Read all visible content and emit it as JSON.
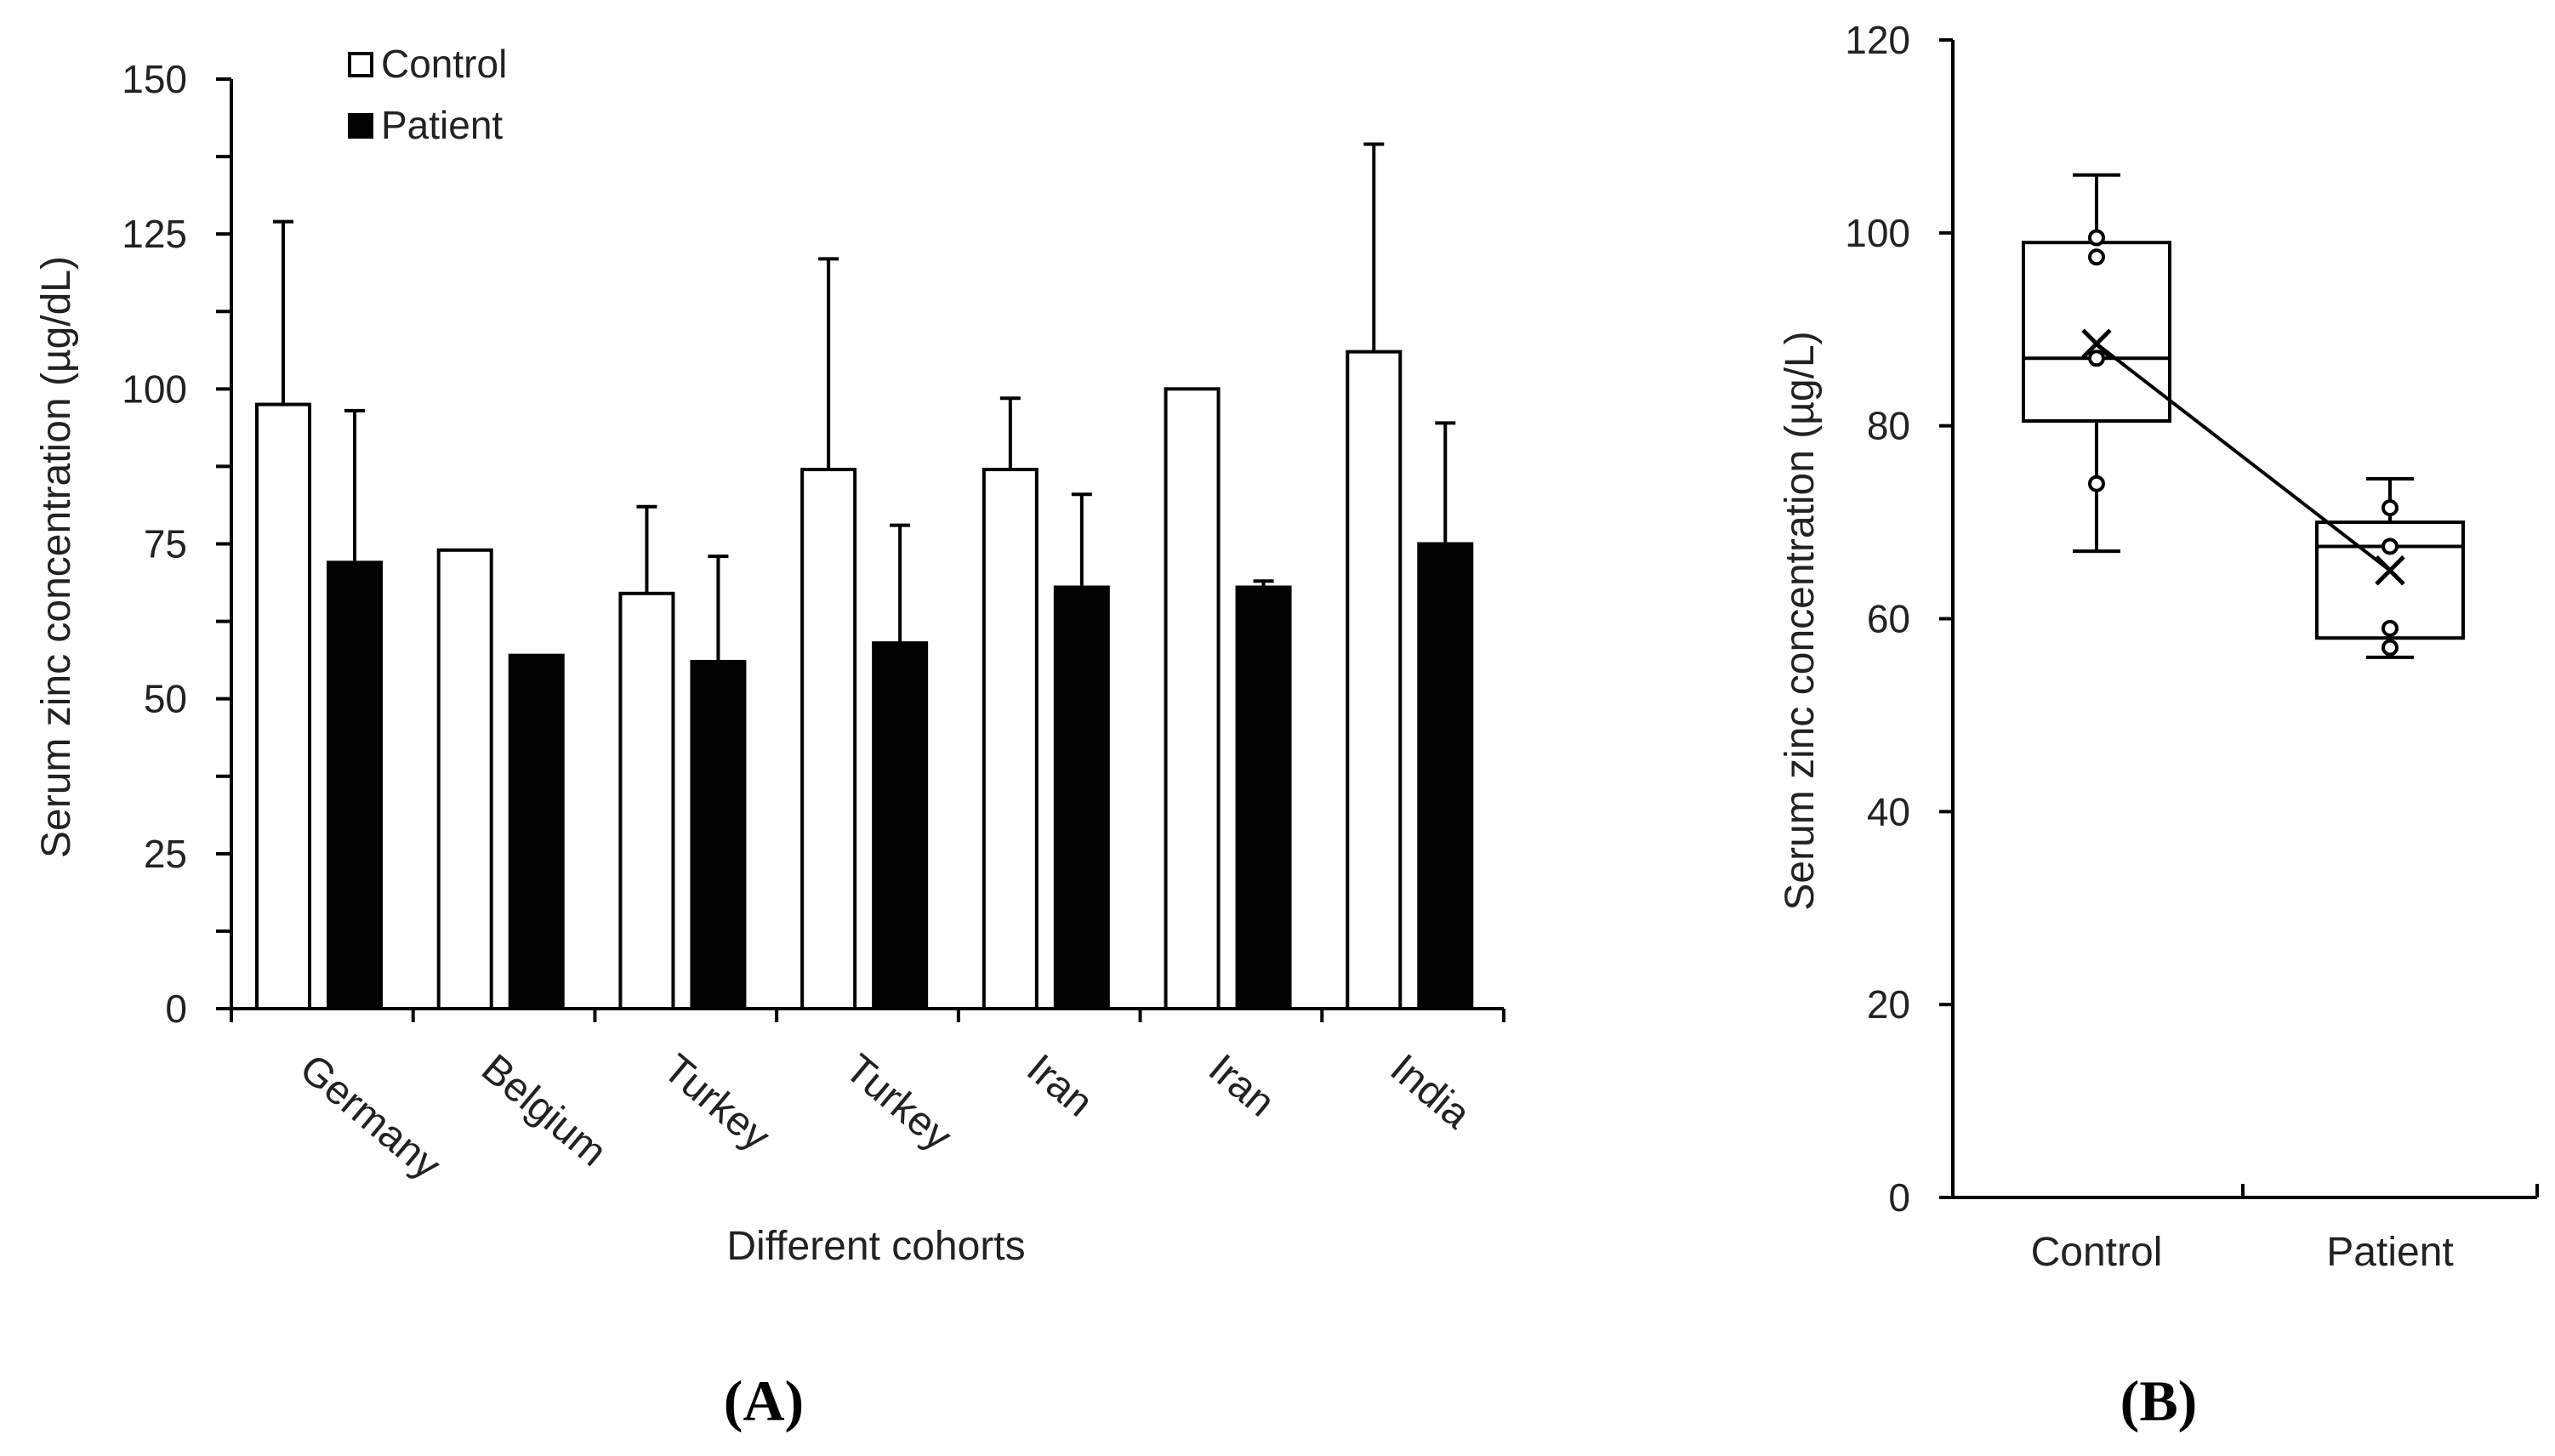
{
  "chart_data": [
    {
      "type": "bar",
      "panel_label": "(A)",
      "ylabel": "Serum zinc concentration  (µg/dL)",
      "xlabel": "Different cohorts",
      "ylim": [
        0,
        150
      ],
      "yticks": [
        0,
        25,
        50,
        75,
        100,
        125,
        150
      ],
      "categories": [
        "Germany",
        "Belgium",
        "Turkey",
        "Turkey",
        "Iran",
        "Iran",
        "India"
      ],
      "legend": {
        "placement": "top-left",
        "entries": [
          "Control",
          "Patient"
        ]
      },
      "series": [
        {
          "name": "Control",
          "color": "#ffffff",
          "values": [
            97.5,
            74,
            67,
            87,
            87,
            100,
            106
          ],
          "error": [
            29.5,
            0,
            14,
            34,
            11.5,
            0,
            33.5
          ]
        },
        {
          "name": "Patient",
          "color": "#000000",
          "values": [
            72,
            57,
            56,
            59,
            68,
            68,
            75
          ],
          "error": [
            24.5,
            0,
            17,
            19,
            15,
            1,
            19.5
          ]
        }
      ]
    },
    {
      "type": "box",
      "panel_label": "(B)",
      "ylabel": "Serum zinc concentration  (µg/L)",
      "ylim": [
        0,
        120
      ],
      "yticks": [
        0,
        20,
        40,
        60,
        80,
        100,
        120
      ],
      "categories": [
        "Control",
        "Patient"
      ],
      "boxes": [
        {
          "name": "Control",
          "whisker_low": 67,
          "q1": 80.5,
          "median": 87,
          "q3": 99,
          "whisker_high": 106,
          "mean": 88.5,
          "points": [
            74,
            87,
            97.5,
            99.5
          ]
        },
        {
          "name": "Patient",
          "whisker_low": 56,
          "q1": 58,
          "median": 67.5,
          "q3": 70,
          "whisker_high": 74.5,
          "mean": 65,
          "points": [
            57,
            59,
            67.5,
            71.5
          ]
        }
      ]
    }
  ]
}
